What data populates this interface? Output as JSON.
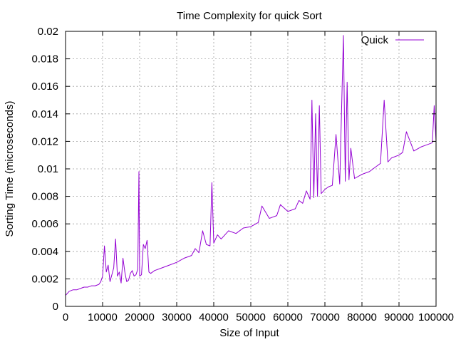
{
  "chart_data": {
    "type": "line",
    "title": "Time Complexity for quick Sort",
    "xlabel": "Size of Input",
    "ylabel": "Sorting Time (microseconds)",
    "xlim": [
      0,
      100000
    ],
    "ylim": [
      0,
      0.02
    ],
    "x_ticks": [
      "0",
      "10000",
      "20000",
      "30000",
      "40000",
      "50000",
      "60000",
      "70000",
      "80000",
      "90000",
      "100000"
    ],
    "y_ticks": [
      "0",
      "0.002",
      "0.004",
      "0.006",
      "0.008",
      "0.01",
      "0.012",
      "0.014",
      "0.016",
      "0.018",
      "0.02"
    ],
    "grid": true,
    "legend_position": "top-right",
    "series": [
      {
        "name": "Quick",
        "color": "#9400d3",
        "x": [
          0,
          1000,
          2000,
          3000,
          4000,
          5000,
          6000,
          7000,
          8000,
          9000,
          9500,
          10000,
          10500,
          11000,
          11500,
          12000,
          12500,
          13000,
          13500,
          14000,
          14500,
          15000,
          15500,
          16000,
          16500,
          17000,
          17500,
          18000,
          18500,
          19000,
          19500,
          19800,
          20000,
          20500,
          21000,
          21500,
          22000,
          22500,
          23000,
          24000,
          26000,
          28000,
          30000,
          32000,
          34000,
          35000,
          36000,
          37000,
          38000,
          39000,
          39500,
          40000,
          41000,
          42000,
          44000,
          46000,
          48000,
          50000,
          52000,
          53000,
          55000,
          57000,
          58000,
          60000,
          62000,
          63000,
          64000,
          65000,
          66000,
          66500,
          67000,
          67500,
          68000,
          68500,
          69000,
          70000,
          71000,
          72000,
          73000,
          74000,
          75000,
          75500,
          76000,
          76500,
          77000,
          78000,
          80000,
          82000,
          84000,
          85000,
          86000,
          87000,
          88000,
          90000,
          91000,
          92000,
          94000,
          96000,
          97000,
          98000,
          99000,
          99500,
          100000
        ],
        "y": [
          0.0008,
          0.0011,
          0.0012,
          0.0012,
          0.0013,
          0.0014,
          0.0014,
          0.0015,
          0.0015,
          0.0016,
          0.0018,
          0.0022,
          0.0044,
          0.0025,
          0.003,
          0.0018,
          0.0023,
          0.0028,
          0.0049,
          0.0022,
          0.0025,
          0.0017,
          0.0035,
          0.0025,
          0.0018,
          0.0019,
          0.0024,
          0.0026,
          0.0022,
          0.0023,
          0.0027,
          0.0098,
          0.0022,
          0.0023,
          0.0045,
          0.0042,
          0.0048,
          0.0025,
          0.0024,
          0.0026,
          0.0028,
          0.003,
          0.0032,
          0.0035,
          0.0037,
          0.0042,
          0.0039,
          0.0055,
          0.0045,
          0.0044,
          0.009,
          0.0046,
          0.0052,
          0.0049,
          0.0055,
          0.0053,
          0.0057,
          0.0058,
          0.0061,
          0.0073,
          0.0064,
          0.0066,
          0.0074,
          0.0069,
          0.0071,
          0.0077,
          0.0075,
          0.0084,
          0.0078,
          0.015,
          0.0079,
          0.014,
          0.008,
          0.0146,
          0.0082,
          0.0085,
          0.0087,
          0.0088,
          0.0125,
          0.0089,
          0.0197,
          0.0091,
          0.0163,
          0.0092,
          0.0115,
          0.0093,
          0.0096,
          0.0098,
          0.0102,
          0.0104,
          0.015,
          0.0105,
          0.0108,
          0.011,
          0.0112,
          0.0127,
          0.0113,
          0.0116,
          0.0117,
          0.0118,
          0.0119,
          0.0146,
          0.012
        ]
      }
    ]
  }
}
